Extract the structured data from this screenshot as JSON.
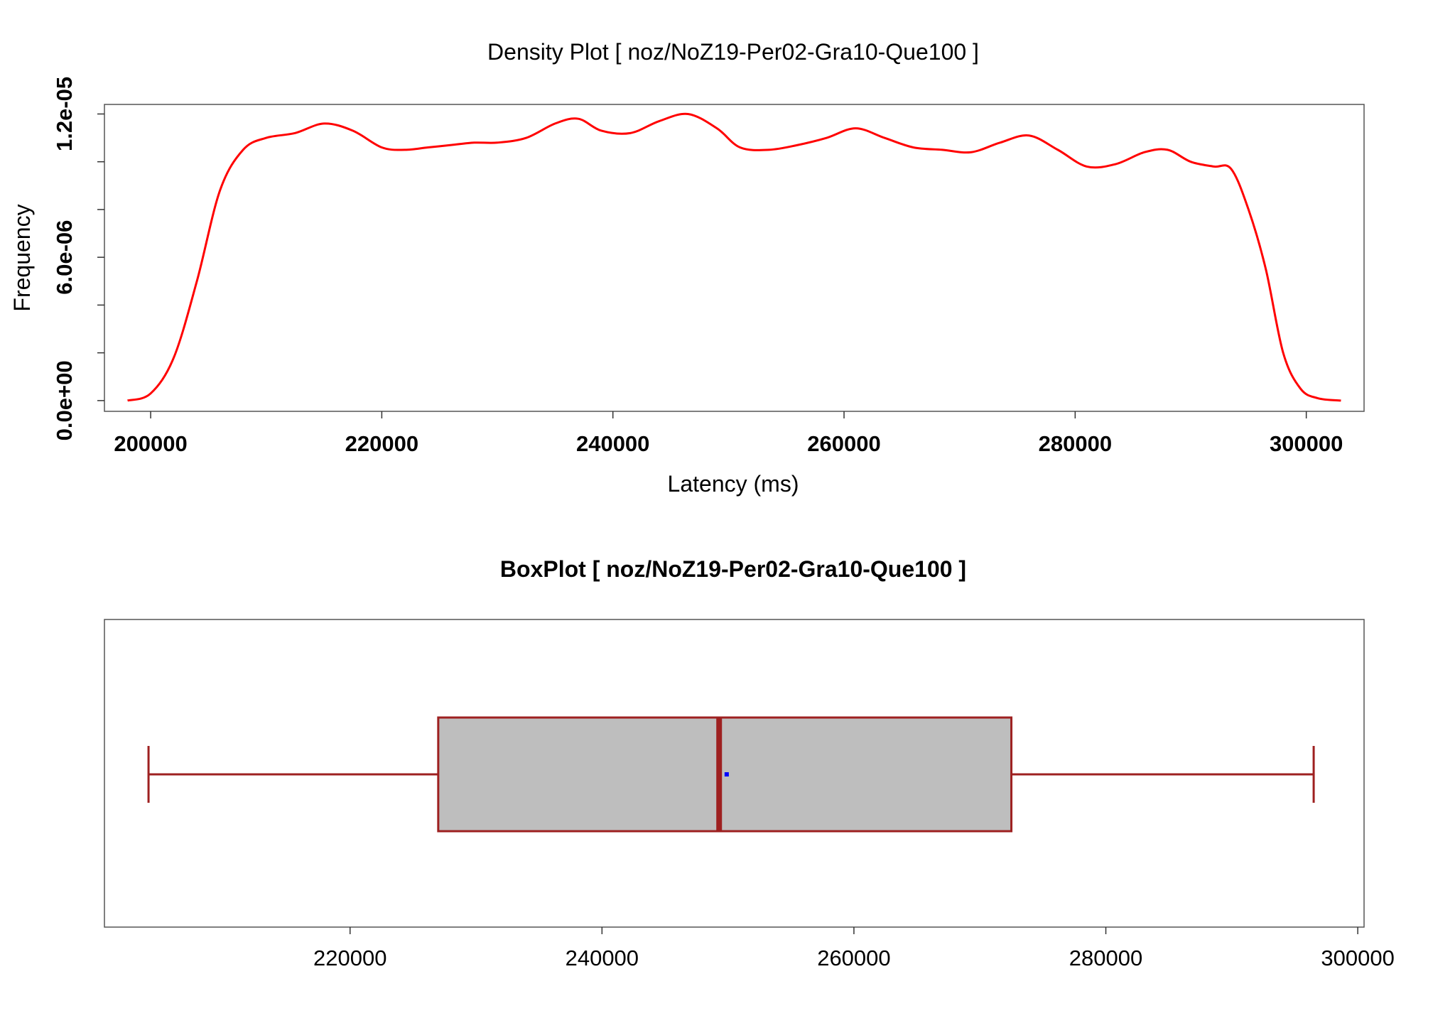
{
  "chart_data": [
    {
      "type": "line",
      "title": "Density Plot [ noz/NoZ19-Per02-Gra10-Que100 ]",
      "xlabel": "Latency (ms)",
      "ylabel": "Frequency",
      "xlim": [
        196000,
        305000
      ],
      "ylim": [
        -4.5e-07,
        1.24e-05
      ],
      "x_ticks": [
        200000,
        220000,
        240000,
        260000,
        280000,
        300000
      ],
      "x_tick_labels": [
        "200000",
        "220000",
        "240000",
        "260000",
        "280000",
        "300000"
      ],
      "y_ticks": [
        0,
        2e-06,
        4e-06,
        6e-06,
        8e-06,
        1e-05,
        1.2e-05
      ],
      "y_tick_labels": [
        {
          "value": 0,
          "label": "0.0e+00"
        },
        {
          "value": 6e-06,
          "label": "6.0e-06"
        },
        {
          "value": 1.2e-05,
          "label": "1.2e-05"
        }
      ],
      "color": "#ff0000",
      "series": [
        {
          "x": [
            198000,
            200000,
            202000,
            204000,
            206000,
            208000,
            210000,
            212500,
            215000,
            217500,
            220000,
            222000,
            224000,
            226000,
            228000,
            230000,
            232500,
            235000,
            237000,
            239000,
            241500,
            244000,
            246500,
            249000,
            251000,
            253500,
            256000,
            258500,
            261000,
            263500,
            266000,
            268500,
            271000,
            273500,
            276000,
            278500,
            281000,
            283500,
            286000,
            288000,
            290000,
            292000,
            293500,
            295000,
            296500,
            298000,
            299500,
            301000,
            303000
          ],
          "y": [
            0.0,
            3e-07,
            1.8e-06,
            5e-06,
            8.8e-06,
            1.05e-05,
            1.1e-05,
            1.12e-05,
            1.16e-05,
            1.13e-05,
            1.06e-05,
            1.05e-05,
            1.06e-05,
            1.07e-05,
            1.08e-05,
            1.08e-05,
            1.1e-05,
            1.16e-05,
            1.18e-05,
            1.13e-05,
            1.12e-05,
            1.17e-05,
            1.2e-05,
            1.14e-05,
            1.06e-05,
            1.05e-05,
            1.07e-05,
            1.1e-05,
            1.14e-05,
            1.1e-05,
            1.06e-05,
            1.05e-05,
            1.04e-05,
            1.08e-05,
            1.11e-05,
            1.05e-05,
            9.8e-06,
            9.9e-06,
            1.04e-05,
            1.05e-05,
            1e-05,
            9.8e-06,
            9.7e-06,
            8e-06,
            5.5e-06,
            2e-06,
            5e-07,
            1e-07,
            0.0
          ]
        }
      ]
    },
    {
      "type": "box",
      "title": "BoxPlot [ noz/NoZ19-Per02-Gra10-Que100 ]",
      "xlim": [
        200500,
        300500
      ],
      "x_ticks": [
        220000,
        240000,
        260000,
        280000,
        300000
      ],
      "x_tick_labels": [
        "220000",
        "240000",
        "260000",
        "280000",
        "300000"
      ],
      "whisker_low": 204000,
      "q1": 227000,
      "median": 249300,
      "q3": 272500,
      "whisker_high": 296500,
      "mean": 249900,
      "box_color": "#bebebe",
      "line_color": "#9e2020",
      "mean_color": "#0000ff"
    }
  ]
}
